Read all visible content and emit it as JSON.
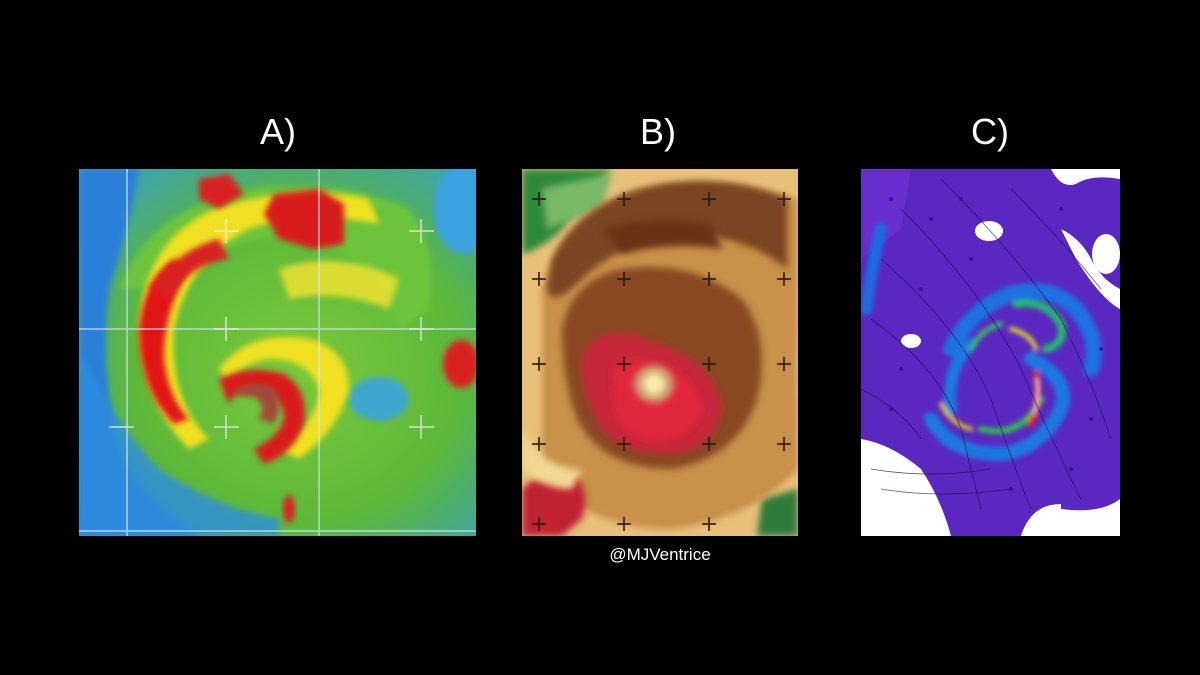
{
  "panels": [
    {
      "label": "A)",
      "image": "ir-satellite-hurricane-rainbow-enhancement"
    },
    {
      "label": "B)",
      "image": "ir-satellite-hurricane-bd-enhancement"
    },
    {
      "label": "C)",
      "image": "model-hurricane-rainfall-spiral"
    }
  ],
  "credit": "@MJVentrice"
}
